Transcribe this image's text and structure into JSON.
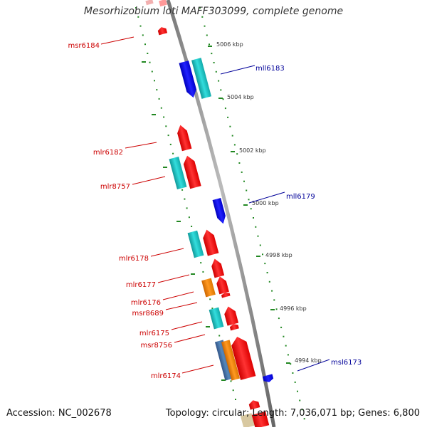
{
  "title": "Mesorhizobium loti MAFF303099, complete genome",
  "footer": {
    "accession": "Accession: NC_002678",
    "topology": "Topology: circular; Length: 7,036,071 bp; Genes: 6,800"
  },
  "scale_labels": [
    "5006 kbp",
    "5004 kbp",
    "5002 kbp",
    "5000 kbp",
    "4998 kbp",
    "4996 kbp",
    "4994 kbp"
  ],
  "gene_labels": [
    {
      "text": "msr6184",
      "strand": "+"
    },
    {
      "text": "mll6183",
      "strand": "-"
    },
    {
      "text": "mlr6182",
      "strand": "+"
    },
    {
      "text": "mlr8757",
      "strand": "+"
    },
    {
      "text": "mll6179",
      "strand": "-"
    },
    {
      "text": "mlr6178",
      "strand": "+"
    },
    {
      "text": "mlr6177",
      "strand": "+"
    },
    {
      "text": "mlr6176",
      "strand": "+"
    },
    {
      "text": "msr8689",
      "strand": "+"
    },
    {
      "text": "mlr6175",
      "strand": "+"
    },
    {
      "text": "msr8756",
      "strand": "+"
    },
    {
      "text": "mlr6174",
      "strand": "+"
    },
    {
      "text": "msl6173",
      "strand": "-"
    }
  ],
  "colors": {
    "forward_label": "#cc0000",
    "reverse_label": "#000099",
    "forward_gene": "#ff1111",
    "reverse_gene": "#1111ff",
    "cyan_feature": "#22cccc",
    "orange_feature": "#ff8800",
    "steel_feature": "#4477aa",
    "backbone": "#888888",
    "tick": "#228822"
  }
}
